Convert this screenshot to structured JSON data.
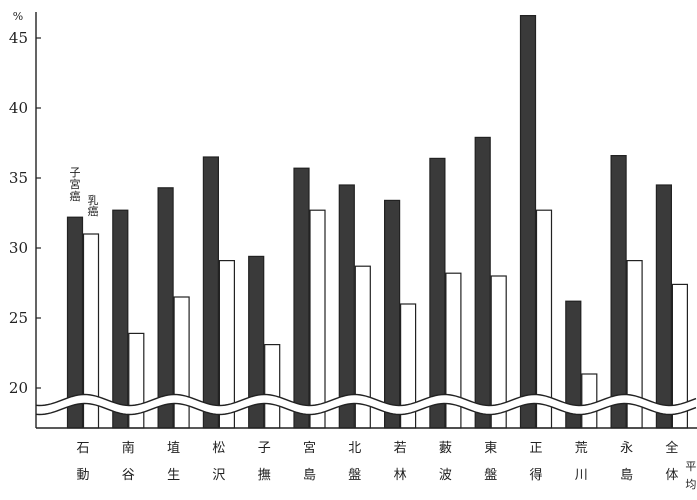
{
  "chart_data": {
    "type": "bar",
    "title": "",
    "ylabel": "%",
    "ylim": [
      17,
      46.8
    ],
    "yticks": [
      20,
      25,
      30,
      35,
      40,
      45
    ],
    "axis_break": true,
    "grid": false,
    "categories": [
      [
        "石",
        "動"
      ],
      [
        "南",
        "谷"
      ],
      [
        "埴",
        "生"
      ],
      [
        "松",
        "沢"
      ],
      [
        "子",
        "撫"
      ],
      [
        "宮",
        "島"
      ],
      [
        "北",
        "盤"
      ],
      [
        "若",
        "林"
      ],
      [
        "藪",
        "波"
      ],
      [
        "東",
        "盤"
      ],
      [
        "正",
        "得"
      ],
      [
        "荒",
        "川"
      ],
      [
        "永",
        "島"
      ],
      [
        "全",
        "体"
      ]
    ],
    "extra_label": "平均",
    "series": [
      {
        "name": "子宮癌",
        "color": "#3a3a3a",
        "fill": "dark",
        "values": [
          32.2,
          32.7,
          34.3,
          36.5,
          29.4,
          35.7,
          34.5,
          33.4,
          36.4,
          37.9,
          46.6,
          26.2,
          36.6,
          34.5
        ]
      },
      {
        "name": "乳癌",
        "color": "#ffffff",
        "fill": "white",
        "values": [
          31.0,
          23.9,
          26.5,
          29.1,
          23.1,
          32.7,
          28.7,
          26.0,
          28.2,
          28.0,
          32.7,
          21.0,
          29.1,
          27.4
        ]
      }
    ],
    "annotations": [
      "子宮癌",
      "乳癌"
    ]
  }
}
